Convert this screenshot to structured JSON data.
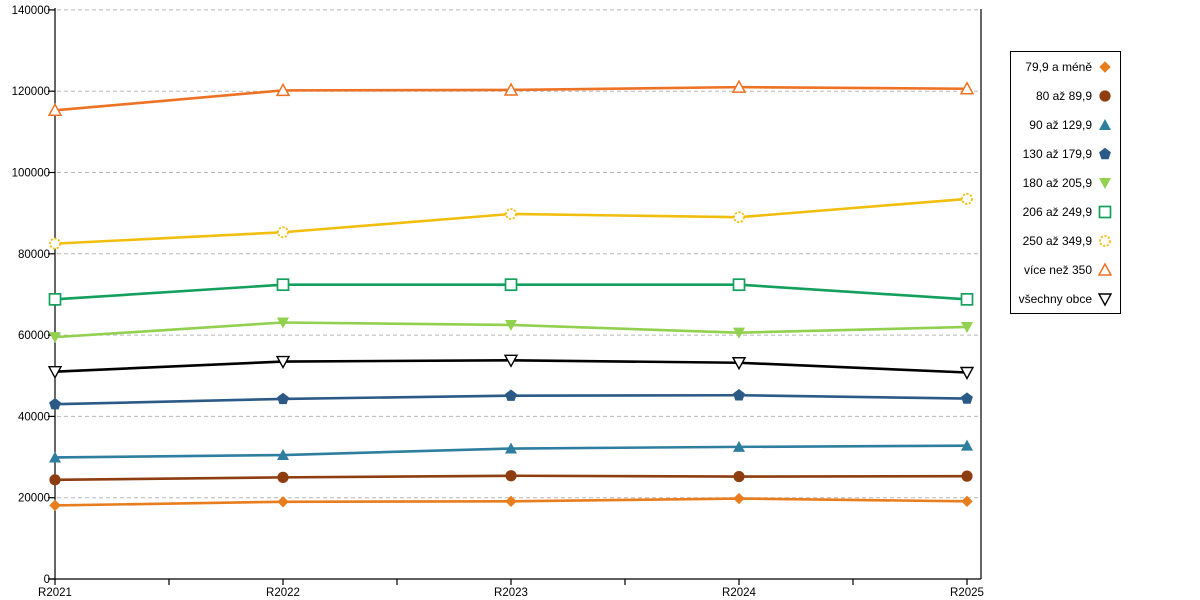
{
  "chart_data": {
    "type": "line",
    "title": "",
    "xlabel": "",
    "ylabel": "",
    "categories": [
      "R2021",
      "R2022",
      "R2023",
      "R2024",
      "R2025"
    ],
    "y_axis": {
      "min": 0,
      "max": 140000,
      "tick_interval": 20000,
      "tick_labels": [
        "0",
        "20000",
        "40000",
        "60000",
        "80000",
        "100000",
        "120000",
        "140000"
      ]
    },
    "grid": "horizontal-dashed",
    "grid_color": "#b8b8b8",
    "axis_color": "#000000",
    "legend_position": "right",
    "series": [
      {
        "name": "79,9 a méně",
        "marker": "diamond-filled",
        "color": "#E87D1E",
        "values": [
          18100,
          19000,
          19100,
          19800,
          19100
        ]
      },
      {
        "name": "80 až 89,9",
        "marker": "circle-filled",
        "color": "#8E3D10",
        "values": [
          24400,
          25000,
          25400,
          25200,
          25300
        ]
      },
      {
        "name": "90 až 129,9",
        "marker": "triangle-up-filled",
        "color": "#2E7E9F",
        "values": [
          29900,
          30500,
          32100,
          32500,
          32800
        ]
      },
      {
        "name": "130 až 179,9",
        "marker": "pentagon-filled",
        "color": "#2B5A87",
        "values": [
          43000,
          44300,
          45100,
          45200,
          44400
        ]
      },
      {
        "name": "180 až 205,9",
        "marker": "triangle-down-filled",
        "color": "#92D050",
        "values": [
          59500,
          63100,
          62500,
          60600,
          62000
        ]
      },
      {
        "name": "206 až 249,9",
        "marker": "square-open",
        "color": "#13A05C",
        "values": [
          68800,
          72400,
          72400,
          72400,
          68800
        ]
      },
      {
        "name": "250 až 349,9",
        "marker": "circle-open-dashed",
        "color": "#F2BE0D",
        "values": [
          82500,
          85300,
          89800,
          89000,
          93500
        ]
      },
      {
        "name": "více než 350",
        "marker": "triangle-up-open",
        "color": "#ED7224",
        "values": [
          115300,
          120200,
          120300,
          121000,
          120600
        ]
      },
      {
        "name": "všechny obce",
        "marker": "triangle-down-open",
        "color": "#000000",
        "values": [
          51000,
          53500,
          53800,
          53200,
          50800
        ]
      }
    ]
  }
}
